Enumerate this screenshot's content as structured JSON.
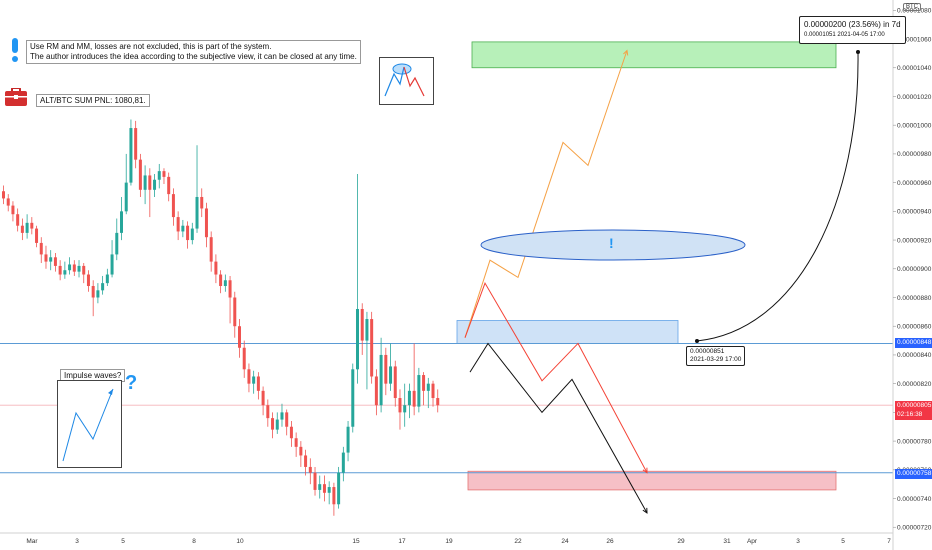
{
  "chart_data": {
    "type": "candlestick",
    "symbol": "BTC",
    "x_ticks": [
      "Mar",
      "3",
      "5",
      "8",
      "10",
      "15",
      "17",
      "19",
      "22",
      "24",
      "26",
      "29",
      "31",
      "Apr",
      "3",
      "5",
      "7"
    ],
    "y_ticks": [
      "0.00000720",
      "0.00000740",
      "0.00000760",
      "0.00000780",
      "0.00000800",
      "0.00000820",
      "0.00000840",
      "0.00000860",
      "0.00000880",
      "0.00000900",
      "0.00000920",
      "0.00000940",
      "0.00000960",
      "0.00000980",
      "0.00001000",
      "0.00001020",
      "0.00001040",
      "0.00001060",
      "0.00001080"
    ],
    "ylim": [
      7.16e-06,
      1.083e-05
    ],
    "horizontal_levels": [
      {
        "price": 8.48e-06,
        "label": "0.00000848",
        "color": "#2962ff"
      },
      {
        "price": 7.58e-06,
        "label": "0.00000758",
        "color": "#2962ff"
      },
      {
        "price": 8.05e-06,
        "label": "0.00000805",
        "sub": "02:16:38",
        "color": "#f23645"
      }
    ],
    "zones": [
      {
        "name": "target",
        "from": 1.04e-05,
        "to": 1.058e-05,
        "color": "#b7f0b9"
      },
      {
        "name": "resistance",
        "from": 8.48e-06,
        "to": 8.64e-06,
        "color": "#cfe2f7"
      },
      {
        "name": "support",
        "from": 7.46e-06,
        "to": 7.59e-06,
        "color": "#f6c0c6"
      }
    ],
    "measure": {
      "change": "0.00000200 (23.56%) in 7d",
      "from_price": "0.00001051",
      "from_time": "2021-04-05  17:00"
    },
    "point_label": {
      "price": "0.00000851",
      "time": "2021-03-29 17:00"
    },
    "candles": [
      [
        9.54e-06,
        9.49e-06,
        9.58e-06,
        9.45e-06
      ],
      [
        9.49e-06,
        9.44e-06,
        9.52e-06,
        9.4e-06
      ],
      [
        9.44e-06,
        9.38e-06,
        9.47e-06,
        9.33e-06
      ],
      [
        9.38e-06,
        9.3e-06,
        9.42e-06,
        9.26e-06
      ],
      [
        9.3e-06,
        9.25e-06,
        9.35e-06,
        9.2e-06
      ],
      [
        9.25e-06,
        9.32e-06,
        9.38e-06,
        9.21e-06
      ],
      [
        9.32e-06,
        9.28e-06,
        9.36e-06,
        9.24e-06
      ],
      [
        9.28e-06,
        9.18e-06,
        9.3e-06,
        9.15e-06
      ],
      [
        9.18e-06,
        9.1e-06,
        9.22e-06,
        9.04e-06
      ],
      [
        9.1e-06,
        9.05e-06,
        9.16e-06,
        9e-06
      ],
      [
        9.05e-06,
        9.08e-06,
        9.13e-06,
        8.99e-06
      ],
      [
        9.08e-06,
        9.02e-06,
        9.11e-06,
        8.98e-06
      ],
      [
        9.02e-06,
        8.96e-06,
        9.06e-06,
        8.92e-06
      ],
      [
        8.96e-06,
        8.99e-06,
        9.05e-06,
        8.93e-06
      ],
      [
        8.99e-06,
        9.03e-06,
        9.08e-06,
        8.96e-06
      ],
      [
        9.03e-06,
        8.98e-06,
        9.06e-06,
        8.95e-06
      ],
      [
        8.98e-06,
        9.02e-06,
        9.06e-06,
        8.94e-06
      ],
      [
        9.02e-06,
        8.96e-06,
        9.04e-06,
        8.9e-06
      ],
      [
        8.96e-06,
        8.88e-06,
        8.99e-06,
        8.84e-06
      ],
      [
        8.88e-06,
        8.8e-06,
        8.92e-06,
        8.67e-06
      ],
      [
        8.8e-06,
        8.85e-06,
        8.9e-06,
        8.76e-06
      ],
      [
        8.85e-06,
        8.9e-06,
        8.95e-06,
        8.82e-06
      ],
      [
        8.9e-06,
        8.96e-06,
        9e-06,
        8.88e-06
      ],
      [
        8.96e-06,
        9.1e-06,
        9.2e-06,
        8.94e-06
      ],
      [
        9.1e-06,
        9.25e-06,
        9.35e-06,
        9.06e-06
      ],
      [
        9.25e-06,
        9.4e-06,
        9.5e-06,
        9.2e-06
      ],
      [
        9.4e-06,
        9.6e-06,
        9.8e-06,
        9.38e-06
      ],
      [
        9.6e-06,
        9.98e-06,
        1.004e-05,
        9.58e-06
      ],
      [
        9.98e-06,
        9.76e-06,
        1.003e-05,
        9.7e-06
      ],
      [
        9.76e-06,
        9.55e-06,
        9.8e-06,
        9.5e-06
      ],
      [
        9.55e-06,
        9.65e-06,
        9.72e-06,
        9.45e-06
      ],
      [
        9.65e-06,
        9.55e-06,
        9.7e-06,
        9.36e-06
      ],
      [
        9.55e-06,
        9.62e-06,
        9.66e-06,
        9.5e-06
      ],
      [
        9.62e-06,
        9.68e-06,
        9.73e-06,
        9.56e-06
      ],
      [
        9.68e-06,
        9.64e-06,
        9.7e-06,
        9.59e-06
      ],
      [
        9.64e-06,
        9.52e-06,
        9.67e-06,
        9.47e-06
      ],
      [
        9.52e-06,
        9.36e-06,
        9.56e-06,
        9.3e-06
      ],
      [
        9.36e-06,
        9.26e-06,
        9.4e-06,
        9.2e-06
      ],
      [
        9.26e-06,
        9.3e-06,
        9.34e-06,
        9.22e-06
      ],
      [
        9.3e-06,
        9.2e-06,
        9.33e-06,
        9.14e-06
      ],
      [
        9.2e-06,
        9.28e-06,
        9.32e-06,
        9.17e-06
      ],
      [
        9.28e-06,
        9.5e-06,
        9.86e-06,
        9.25e-06
      ],
      [
        9.5e-06,
        9.42e-06,
        9.56e-06,
        9.36e-06
      ],
      [
        9.42e-06,
        9.22e-06,
        9.46e-06,
        9.15e-06
      ],
      [
        9.22e-06,
        9.05e-06,
        9.26e-06,
        8.98e-06
      ],
      [
        9.05e-06,
        8.96e-06,
        9.1e-06,
        8.9e-06
      ],
      [
        8.96e-06,
        8.88e-06,
        8.99e-06,
        8.83e-06
      ],
      [
        8.88e-06,
        8.92e-06,
        8.96e-06,
        8.84e-06
      ],
      [
        8.92e-06,
        8.8e-06,
        8.95e-06,
        8.62e-06
      ],
      [
        8.8e-06,
        8.6e-06,
        8.84e-06,
        8.52e-06
      ],
      [
        8.6e-06,
        8.45e-06,
        8.65e-06,
        8.38e-06
      ],
      [
        8.45e-06,
        8.3e-06,
        8.5e-06,
        8.24e-06
      ],
      [
        8.3e-06,
        8.2e-06,
        8.34e-06,
        8.14e-06
      ],
      [
        8.2e-06,
        8.25e-06,
        8.29e-06,
        8.13e-06
      ],
      [
        8.25e-06,
        8.15e-06,
        8.28e-06,
        8.09e-06
      ],
      [
        8.15e-06,
        8.05e-06,
        8.18e-06,
        7.98e-06
      ],
      [
        8.05e-06,
        7.96e-06,
        8.09e-06,
        7.9e-06
      ],
      [
        7.96e-06,
        7.88e-06,
        8e-06,
        7.82e-06
      ],
      [
        7.88e-06,
        7.95e-06,
        8e-06,
        7.85e-06
      ],
      [
        7.95e-06,
        8e-06,
        8.06e-06,
        7.9e-06
      ],
      [
        8e-06,
        7.9e-06,
        8.02e-06,
        7.84e-06
      ],
      [
        7.9e-06,
        7.82e-06,
        7.94e-06,
        7.76e-06
      ],
      [
        7.82e-06,
        7.76e-06,
        7.86e-06,
        7.69e-06
      ],
      [
        7.76e-06,
        7.7e-06,
        7.8e-06,
        7.62e-06
      ],
      [
        7.7e-06,
        7.62e-06,
        7.74e-06,
        7.56e-06
      ],
      [
        7.62e-06,
        7.58e-06,
        7.68e-06,
        7.5e-06
      ],
      [
        7.58e-06,
        7.46e-06,
        7.62e-06,
        7.42e-06
      ],
      [
        7.46e-06,
        7.5e-06,
        7.56e-06,
        7.4e-06
      ],
      [
        7.5e-06,
        7.44e-06,
        7.56e-06,
        7.38e-06
      ],
      [
        7.44e-06,
        7.48e-06,
        7.52e-06,
        7.36e-06
      ],
      [
        7.48e-06,
        7.36e-06,
        7.51e-06,
        7.28e-06
      ],
      [
        7.36e-06,
        7.58e-06,
        7.62e-06,
        7.33e-06
      ],
      [
        7.58e-06,
        7.72e-06,
        7.76e-06,
        7.52e-06
      ],
      [
        7.72e-06,
        7.9e-06,
        7.94e-06,
        7.66e-06
      ],
      [
        7.9e-06,
        8.3e-06,
        8.34e-06,
        7.86e-06
      ],
      [
        8.3e-06,
        8.72e-06,
        9.66e-06,
        8.2e-06
      ],
      [
        8.72e-06,
        8.5e-06,
        8.76e-06,
        8.4e-06
      ],
      [
        8.5e-06,
        8.65e-06,
        8.7e-06,
        8.16e-06
      ],
      [
        8.65e-06,
        8.25e-06,
        8.7e-06,
        8.2e-06
      ],
      [
        8.25e-06,
        8.05e-06,
        8.3e-06,
        7.98e-06
      ],
      [
        8.05e-06,
        8.4e-06,
        8.52e-06,
        8e-06
      ],
      [
        8.4e-06,
        8.2e-06,
        8.45e-06,
        8.12e-06
      ],
      [
        8.2e-06,
        8.32e-06,
        8.48e-06,
        8.15e-06
      ],
      [
        8.32e-06,
        8.1e-06,
        8.36e-06,
        8.04e-06
      ],
      [
        8.1e-06,
        8e-06,
        8.16e-06,
        7.88e-06
      ],
      [
        8e-06,
        8.05e-06,
        8.2e-06,
        7.9e-06
      ],
      [
        8.05e-06,
        8.15e-06,
        8.2e-06,
        7.96e-06
      ],
      [
        8.15e-06,
        8.04e-06,
        8.48e-06,
        7.98e-06
      ],
      [
        8.04e-06,
        8.26e-06,
        8.31e-06,
        8e-06
      ],
      [
        8.26e-06,
        8.15e-06,
        8.28e-06,
        8.05e-06
      ],
      [
        8.15e-06,
        8.2e-06,
        8.24e-06,
        8.03e-06
      ],
      [
        8.2e-06,
        8.1e-06,
        8.22e-06,
        8.04e-06
      ],
      [
        8.1e-06,
        8.05e-06,
        8.16e-06,
        8e-06
      ]
    ],
    "forecast_paths": [
      {
        "color": "#f5a145",
        "points": [
          [
            8.52e-06,
            "a"
          ],
          [
            9.06e-06,
            "b"
          ],
          [
            8.94e-06,
            "c"
          ],
          [
            9.88e-06,
            "d"
          ],
          [
            9.72e-06,
            "e"
          ],
          [
            1.052e-05,
            "f"
          ]
        ]
      },
      {
        "color": "#f44336",
        "points": [
          [
            8.52e-06,
            "a"
          ],
          [
            8.9e-06,
            "b"
          ],
          [
            8.22e-06,
            "c"
          ],
          [
            8.48e-06,
            "d"
          ],
          [
            7.58e-06,
            "e"
          ]
        ]
      },
      {
        "color": "#111111",
        "points": [
          [
            8.28e-06,
            "a"
          ],
          [
            8.48e-06,
            "b"
          ],
          [
            8e-06,
            "c"
          ],
          [
            8.23e-06,
            "d"
          ],
          [
            7.3e-06,
            "e"
          ]
        ]
      }
    ]
  },
  "notes": {
    "main_line1": "Use RM and MM, losses are not excluded, this is part of the system.",
    "main_line2": "The author introduces the idea according to the subjective view, it can be closed at any time.",
    "pnl": "ALT/BTC SUM PNL: 1080,81.",
    "impulse": "Impulse waves?",
    "question": "?",
    "bang": "!",
    "measure_line1": "0.00000200 (23.56%) in 7d",
    "measure_line2": "0.00001051    2021-04-05  17:00",
    "point_line1": "0.00000851",
    "point_line2": "2021-03-29 17:00",
    "btc": "BTC",
    "tag_848": "0.00000848",
    "tag_805": "0.00000805",
    "tag_805_sub": "02:16:38",
    "tag_758": "0.00000758"
  },
  "colors": {
    "up": "#26a69a",
    "down": "#ef5350",
    "accent": "#2196f3"
  }
}
